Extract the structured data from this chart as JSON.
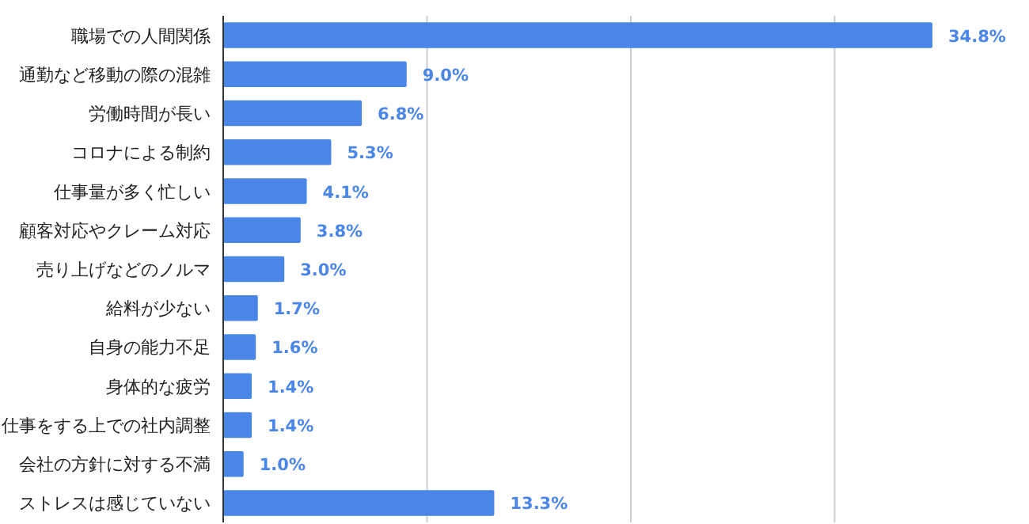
{
  "chart_data": {
    "type": "bar",
    "orientation": "horizontal",
    "categories": [
      "職場での人間関係",
      "通勤など移動の際の混雑",
      "労働時間が長い",
      "コロナによる制約",
      "仕事量が多く忙しい",
      "顧客対応やクレーム対応",
      "売り上げなどのノルマ",
      "給料が少ない",
      "自身の能力不足",
      "身体的な疲労",
      "仕事をする上での社内調整",
      "会社の方針に対する不満",
      "ストレスは感じていない"
    ],
    "values": [
      34.8,
      9.0,
      6.8,
      5.3,
      4.1,
      3.8,
      3.0,
      1.7,
      1.6,
      1.4,
      1.4,
      1.0,
      13.3
    ],
    "value_labels": [
      "34.8%",
      "9.0%",
      "6.8%",
      "5.3%",
      "4.1%",
      "3.8%",
      "3.0%",
      "1.7%",
      "1.6%",
      "1.4%",
      "1.4%",
      "1.0%",
      "13.3%"
    ],
    "color": "#4a86e8",
    "xticks": [
      {
        "value": 0,
        "label": null
      },
      {
        "value": 10,
        "label": null
      },
      {
        "value": 20,
        "label": null
      },
      {
        "value": 30,
        "label": null
      }
    ],
    "grid": "x",
    "tick_labels": "y"
  }
}
